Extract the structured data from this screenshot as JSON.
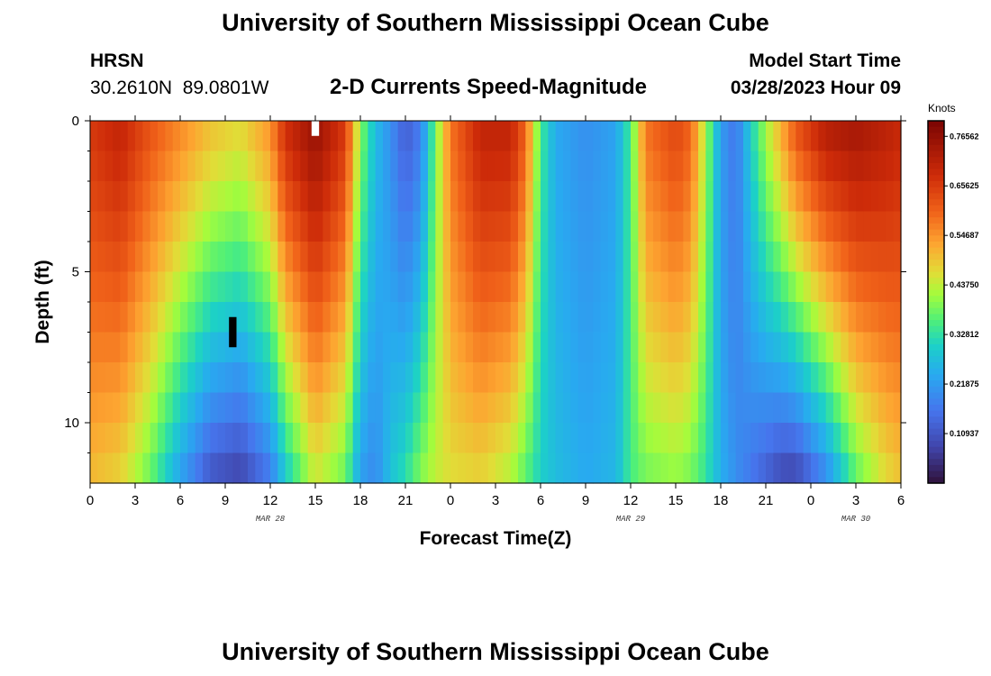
{
  "page": {
    "title": "University of Southern Mississippi Ocean Cube",
    "title_bottom": "University of Southern Mississippi Ocean Cube",
    "station_code": "HRSN",
    "station_coords": "30.2610N  89.0801W",
    "plot_title": "2-D Currents Speed-Magnitude",
    "model_start_label": "Model Start Time",
    "model_start_value": "03/28/2023 Hour 09"
  },
  "chart_data": {
    "type": "heatmap",
    "title": "2-D Currents Speed-Magnitude",
    "xlabel": "Forecast Time(Z)",
    "ylabel": "Depth (ft)",
    "xlim": [
      0,
      54
    ],
    "ylim": [
      12,
      0
    ],
    "x_ticks": [
      0,
      3,
      6,
      9,
      12,
      15,
      18,
      21,
      24,
      27,
      30,
      33,
      36,
      39,
      42,
      45,
      48,
      51,
      54
    ],
    "x_tick_labels": [
      "0",
      "3",
      "6",
      "9",
      "12",
      "15",
      "18",
      "21",
      "0",
      "3",
      "6",
      "9",
      "12",
      "15",
      "18",
      "21",
      "0",
      "3",
      "6"
    ],
    "y_ticks": [
      0,
      5,
      10
    ],
    "y_tick_labels": [
      "0",
      "5",
      "10"
    ],
    "date_labels": [
      {
        "x": 12,
        "text": "MAR 28"
      },
      {
        "x": 36,
        "text": "MAR 29"
      },
      {
        "x": 51,
        "text": "MAR 30"
      }
    ],
    "colorbar": {
      "label": "Knots",
      "min": 0,
      "max": 0.8,
      "tick_values": [
        0.76562,
        0.65625,
        0.54687,
        0.4375,
        0.32812,
        0.21875,
        0.10937
      ],
      "tick_labels": [
        "0.76562",
        "0.65625",
        "0.54687",
        "0.43750",
        "0.32812",
        "0.21875",
        "0.10937"
      ]
    },
    "depth_levels_ft": [
      0,
      1,
      2,
      3,
      4,
      5,
      6,
      7,
      8,
      9,
      10,
      11,
      12
    ],
    "profile_speed_knots": [
      {
        "x": 0,
        "surface": 0.66,
        "bottom": 0.5
      },
      {
        "x": 2,
        "surface": 0.7,
        "bottom": 0.47
      },
      {
        "x": 4,
        "surface": 0.62,
        "bottom": 0.37
      },
      {
        "x": 6,
        "surface": 0.56,
        "bottom": 0.22
      },
      {
        "x": 8,
        "surface": 0.5,
        "bottom": 0.1
      },
      {
        "x": 10,
        "surface": 0.47,
        "bottom": 0.07
      },
      {
        "x": 12,
        "surface": 0.55,
        "bottom": 0.16
      },
      {
        "x": 13,
        "surface": 0.68,
        "bottom": 0.28
      },
      {
        "x": 15,
        "surface": 0.76,
        "bottom": 0.44
      },
      {
        "x": 17,
        "surface": 0.66,
        "bottom": 0.37
      },
      {
        "x": 18,
        "surface": 0.4,
        "bottom": 0.22
      },
      {
        "x": 19,
        "surface": 0.27,
        "bottom": 0.19
      },
      {
        "x": 20,
        "surface": 0.2,
        "bottom": 0.28
      },
      {
        "x": 21,
        "surface": 0.12,
        "bottom": 0.33
      },
      {
        "x": 22,
        "surface": 0.17,
        "bottom": 0.4
      },
      {
        "x": 23,
        "surface": 0.38,
        "bottom": 0.44
      },
      {
        "x": 24,
        "surface": 0.58,
        "bottom": 0.46
      },
      {
        "x": 26,
        "surface": 0.7,
        "bottom": 0.47
      },
      {
        "x": 28,
        "surface": 0.7,
        "bottom": 0.42
      },
      {
        "x": 29,
        "surface": 0.6,
        "bottom": 0.36
      },
      {
        "x": 30,
        "surface": 0.35,
        "bottom": 0.3
      },
      {
        "x": 31,
        "surface": 0.24,
        "bottom": 0.27
      },
      {
        "x": 33,
        "surface": 0.2,
        "bottom": 0.24
      },
      {
        "x": 35,
        "surface": 0.23,
        "bottom": 0.26
      },
      {
        "x": 36,
        "surface": 0.35,
        "bottom": 0.35
      },
      {
        "x": 37,
        "surface": 0.58,
        "bottom": 0.38
      },
      {
        "x": 39,
        "surface": 0.64,
        "bottom": 0.4
      },
      {
        "x": 40,
        "surface": 0.6,
        "bottom": 0.38
      },
      {
        "x": 41,
        "surface": 0.42,
        "bottom": 0.33
      },
      {
        "x": 42,
        "surface": 0.22,
        "bottom": 0.25
      },
      {
        "x": 43,
        "surface": 0.16,
        "bottom": 0.2
      },
      {
        "x": 44,
        "surface": 0.3,
        "bottom": 0.16
      },
      {
        "x": 45,
        "surface": 0.42,
        "bottom": 0.12
      },
      {
        "x": 46,
        "surface": 0.52,
        "bottom": 0.08
      },
      {
        "x": 47,
        "surface": 0.62,
        "bottom": 0.07
      },
      {
        "x": 49,
        "surface": 0.72,
        "bottom": 0.18
      },
      {
        "x": 51,
        "surface": 0.74,
        "bottom": 0.36
      },
      {
        "x": 53,
        "surface": 0.71,
        "bottom": 0.46
      },
      {
        "x": 54,
        "surface": 0.69,
        "bottom": 0.49
      }
    ],
    "missing_cells": [
      {
        "x": 15,
        "depth_from": 0,
        "depth_to": 0.5,
        "color": "#ffffff"
      },
      {
        "x": 9.5,
        "depth_from": 6.5,
        "depth_to": 7.5,
        "color": "#000000"
      }
    ]
  }
}
